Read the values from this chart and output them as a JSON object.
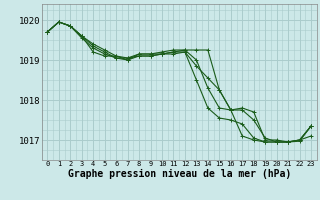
{
  "background_color": "#cce8e8",
  "grid_color": "#aacccc",
  "line_color": "#1a5c1a",
  "marker_color": "#1a5c1a",
  "xlabel": "Graphe pression niveau de la mer (hPa)",
  "xlabel_fontsize": 7,
  "ylim": [
    1016.5,
    1020.4
  ],
  "xlim": [
    -0.5,
    23.5
  ],
  "yticks": [
    1017,
    1018,
    1019,
    1020
  ],
  "xticks": [
    0,
    1,
    2,
    3,
    4,
    5,
    6,
    7,
    8,
    9,
    10,
    11,
    12,
    13,
    14,
    15,
    16,
    17,
    18,
    19,
    20,
    21,
    22,
    23
  ],
  "series": [
    [
      1019.7,
      1019.95,
      1019.85,
      1019.55,
      1019.3,
      1019.15,
      1019.05,
      1019.0,
      1019.1,
      1019.1,
      1019.15,
      1019.2,
      1019.2,
      1018.85,
      1018.55,
      1018.25,
      1017.75,
      1017.8,
      1017.7,
      1017.0,
      1017.0,
      1016.95,
      1017.0,
      1017.1
    ],
    [
      1019.7,
      1019.95,
      1019.85,
      1019.6,
      1019.2,
      1019.1,
      1019.1,
      1019.0,
      1019.15,
      1019.15,
      1019.2,
      1019.25,
      1019.25,
      1019.0,
      1018.3,
      1017.8,
      1017.75,
      1017.1,
      1017.0,
      1016.95,
      1016.95,
      1016.95,
      1017.0,
      1017.35
    ],
    [
      1019.7,
      1019.95,
      1019.85,
      1019.6,
      1019.35,
      1019.2,
      1019.05,
      1019.05,
      1019.1,
      1019.1,
      1019.15,
      1019.15,
      1019.2,
      1018.5,
      1017.8,
      1017.55,
      1017.5,
      1017.4,
      1017.05,
      1016.95,
      1016.95,
      1016.95,
      1017.0,
      1017.35
    ],
    [
      1019.7,
      1019.95,
      1019.85,
      1019.6,
      1019.4,
      1019.25,
      1019.1,
      1019.05,
      1019.15,
      1019.15,
      1019.15,
      1019.2,
      1019.25,
      1019.25,
      1019.25,
      1018.25,
      1017.75,
      1017.75,
      1017.5,
      1017.05,
      1016.95,
      1016.95,
      1016.97,
      1017.35
    ]
  ],
  "marker_size": 2.5,
  "line_width": 0.8
}
